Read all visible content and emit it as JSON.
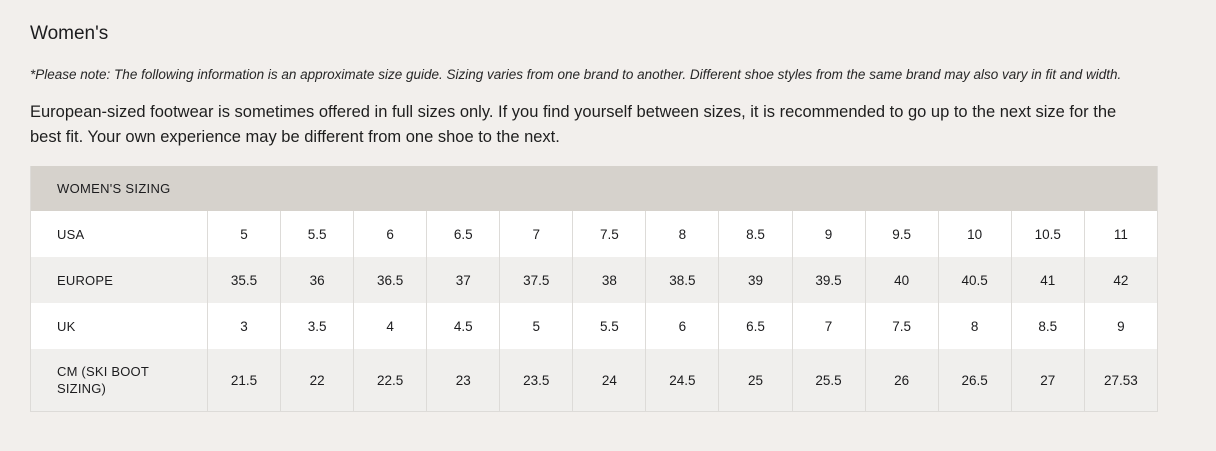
{
  "page": {
    "title": "Women's",
    "note": "*Please note: The following information is an approximate size guide. Sizing varies from one brand to another. Different shoe styles from the same brand may also vary in fit and width.",
    "paragraph": "European-sized footwear is sometimes offered in full sizes only. If you find yourself between sizes, it is recommended to go up to the next size for the best fit. Your own experience may be different from one shoe to the next."
  },
  "table": {
    "header": "WOMEN'S SIZING",
    "rows": [
      {
        "label": "USA",
        "values": [
          "5",
          "5.5",
          "6",
          "6.5",
          "7",
          "7.5",
          "8",
          "8.5",
          "9",
          "9.5",
          "10",
          "10.5",
          "11"
        ]
      },
      {
        "label": "EUROPE",
        "values": [
          "35.5",
          "36",
          "36.5",
          "37",
          "37.5",
          "38",
          "38.5",
          "39",
          "39.5",
          "40",
          "40.5",
          "41",
          "42"
        ]
      },
      {
        "label": "UK",
        "values": [
          "3",
          "3.5",
          "4",
          "4.5",
          "5",
          "5.5",
          "6",
          "6.5",
          "7",
          "7.5",
          "8",
          "8.5",
          "9"
        ]
      },
      {
        "label": "CM (SKI BOOT SIZING)",
        "values": [
          "21.5",
          "22",
          "22.5",
          "23",
          "23.5",
          "24",
          "24.5",
          "25",
          "25.5",
          "26",
          "26.5",
          "27",
          "27.53"
        ]
      }
    ]
  },
  "colors": {
    "page_bg": "#f2efec",
    "header_bg": "#d6d2cc",
    "row_bg": "#ffffff",
    "row_alt_bg": "#f0efed",
    "border": "#dddbd8",
    "text": "#1e1e1e"
  }
}
